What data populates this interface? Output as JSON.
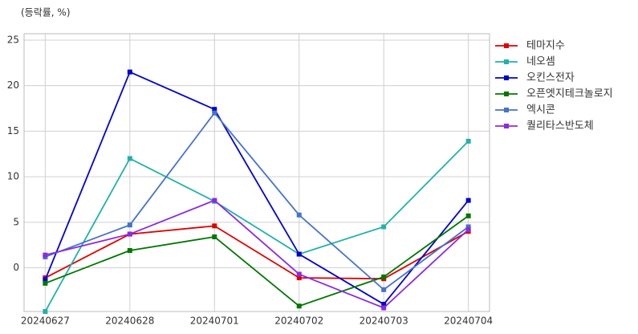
{
  "chart_data": {
    "type": "line",
    "title": "(등락률, %)",
    "categories": [
      "20240627",
      "20240628",
      "20240701",
      "20240702",
      "20240703",
      "20240704"
    ],
    "series": [
      {
        "name": "테마지수",
        "color": "#e00000",
        "values": [
          -1.1,
          3.7,
          4.6,
          -1.1,
          -1.2,
          4.0
        ]
      },
      {
        "name": "네오셈",
        "color": "#20b2aa",
        "values": [
          -4.8,
          12.0,
          7.3,
          1.5,
          4.5,
          13.9
        ]
      },
      {
        "name": "오킨스전자",
        "color": "#0000d0",
        "values": [
          -1.3,
          21.5,
          17.4,
          1.5,
          -4.0,
          7.4
        ]
      },
      {
        "name": "오픈엣지테크놀로지",
        "color": "#007700",
        "values": [
          -1.7,
          1.9,
          3.4,
          -4.2,
          -1.0,
          5.7
        ]
      },
      {
        "name": "엑시콘",
        "color": "#4472cc",
        "values": [
          1.2,
          4.7,
          17.0,
          5.8,
          -2.4,
          4.5
        ]
      },
      {
        "name": "퀄리타스반도체",
        "color": "#8a2be2",
        "values": [
          1.4,
          3.7,
          7.4,
          -0.7,
          -4.4,
          4.2
        ]
      }
    ],
    "ylim": [
      -4.8,
      25.7
    ],
    "yticks": [
      0,
      5,
      10,
      15,
      20,
      25
    ],
    "grid": true,
    "legend": "right"
  }
}
